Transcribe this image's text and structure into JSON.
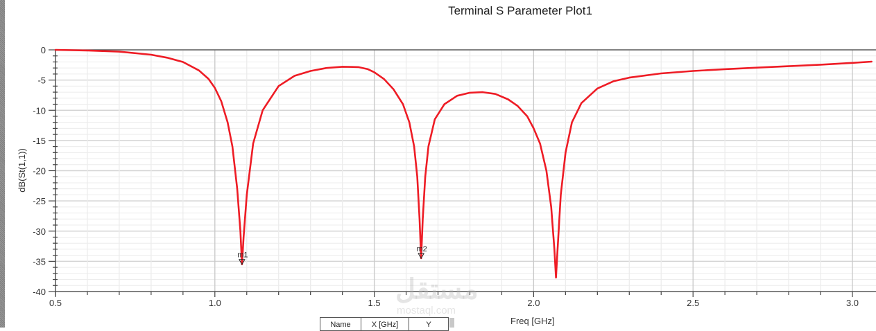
{
  "window": {
    "title": "Terminal S Parameter Plot1"
  },
  "axes": {
    "xlabel": "Freq [GHz]",
    "ylabel": "dB(St(1,1))"
  },
  "marker_table": {
    "columns": [
      "Name",
      "X [GHz]",
      "Y"
    ]
  },
  "watermark": {
    "text": "مستقل",
    "sub": "mostaql.com"
  },
  "colors": {
    "trace": "#ee1c25",
    "grid_major": "#d4d4d4",
    "grid_minor": "#ececec",
    "axis": "#444444"
  },
  "chart_data": {
    "type": "line",
    "title": "Terminal S Parameter Plot1",
    "xlabel": "Freq [GHz]",
    "ylabel": "dB(St(1,1))",
    "xlim": [
      0.5,
      3.06
    ],
    "ylim": [
      -40,
      0
    ],
    "x_ticks": [
      0.5,
      1.0,
      1.5,
      2.0,
      2.5,
      3.0
    ],
    "x_tick_labels": [
      "0.5",
      "1.0",
      "1.5",
      "2.0",
      "2.5",
      "3.0"
    ],
    "y_ticks": [
      0,
      -5,
      -10,
      -15,
      -20,
      -25,
      -30,
      -35,
      -40
    ],
    "y_tick_labels": [
      "0",
      "-5",
      "-10",
      "-15",
      "-20",
      "-25",
      "-30",
      "-35",
      "-40"
    ],
    "grid": true,
    "legend": null,
    "series": [
      {
        "name": "dB(St(1,1))",
        "color": "#ee1c25",
        "x": [
          0.5,
          0.6,
          0.7,
          0.8,
          0.85,
          0.9,
          0.95,
          0.98,
          1.0,
          1.02,
          1.04,
          1.055,
          1.07,
          1.08,
          1.085,
          1.09,
          1.1,
          1.12,
          1.15,
          1.2,
          1.25,
          1.3,
          1.35,
          1.4,
          1.45,
          1.48,
          1.5,
          1.53,
          1.56,
          1.59,
          1.61,
          1.625,
          1.635,
          1.642,
          1.647,
          1.652,
          1.66,
          1.67,
          1.69,
          1.72,
          1.76,
          1.8,
          1.84,
          1.88,
          1.92,
          1.95,
          1.98,
          2.0,
          2.02,
          2.04,
          2.055,
          2.065,
          2.07,
          2.075,
          2.085,
          2.1,
          2.12,
          2.15,
          2.2,
          2.25,
          2.3,
          2.4,
          2.5,
          2.6,
          2.7,
          2.8,
          2.9,
          3.0,
          3.06
        ],
        "values": [
          0,
          -0.1,
          -0.3,
          -0.8,
          -1.3,
          -2.0,
          -3.4,
          -4.8,
          -6.3,
          -8.5,
          -12,
          -16,
          -23,
          -30,
          -35.5,
          -31,
          -24,
          -15.5,
          -10,
          -6,
          -4.3,
          -3.5,
          -3.0,
          -2.8,
          -2.85,
          -3.2,
          -3.7,
          -4.8,
          -6.5,
          -9,
          -12,
          -16,
          -21,
          -28,
          -34.5,
          -28,
          -21,
          -16,
          -11.5,
          -9,
          -7.6,
          -7.1,
          -7.0,
          -7.3,
          -8.2,
          -9.3,
          -11,
          -13,
          -15.5,
          -20,
          -26,
          -33,
          -37.7,
          -33,
          -24,
          -17,
          -12,
          -8.8,
          -6.4,
          -5.2,
          -4.6,
          -3.9,
          -3.5,
          -3.2,
          -2.95,
          -2.7,
          -2.45,
          -2.15,
          -1.95
        ]
      }
    ],
    "markers": [
      {
        "name": "m1",
        "x": 1.085,
        "y": -35.5
      },
      {
        "name": "m2",
        "x": 1.647,
        "y": -34.5
      }
    ]
  }
}
